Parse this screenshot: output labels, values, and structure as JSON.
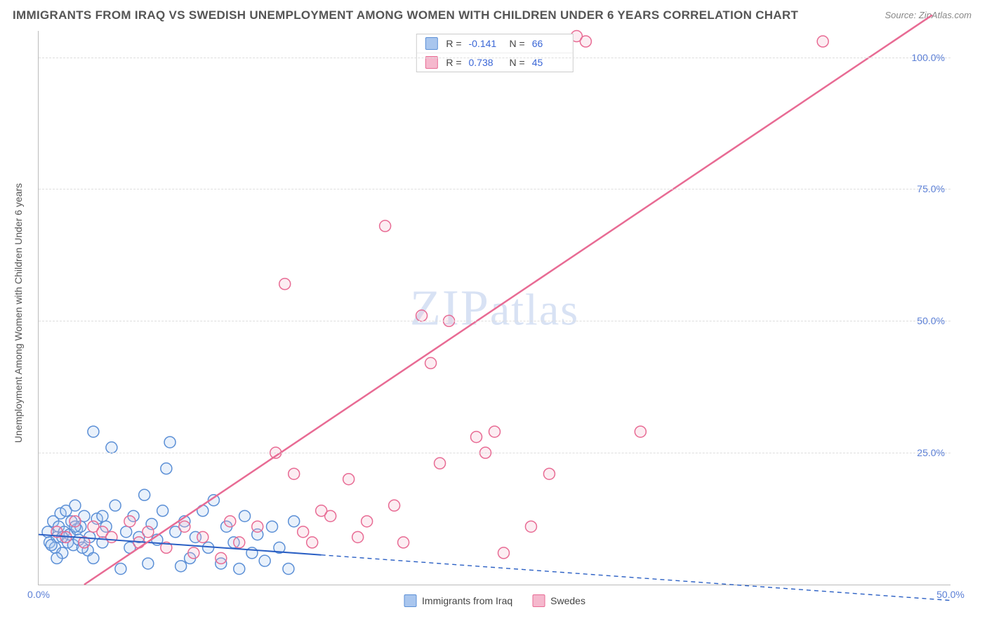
{
  "title": "IMMIGRANTS FROM IRAQ VS SWEDISH UNEMPLOYMENT AMONG WOMEN WITH CHILDREN UNDER 6 YEARS CORRELATION CHART",
  "source": "Source: ZipAtlas.com",
  "ylabel": "Unemployment Among Women with Children Under 6 years",
  "watermark": "ZIPatlas",
  "chart": {
    "type": "scatter",
    "background_color": "#ffffff",
    "grid_color": "#dddddd",
    "axis_color": "#bbbbbb",
    "xlim": [
      0,
      50
    ],
    "ylim": [
      0,
      105
    ],
    "x_ticks": [
      {
        "v": 0,
        "label": "0.0%"
      },
      {
        "v": 50,
        "label": "50.0%"
      }
    ],
    "y_ticks": [
      {
        "v": 25,
        "label": "25.0%"
      },
      {
        "v": 50,
        "label": "50.0%"
      },
      {
        "v": 75,
        "label": "75.0%"
      },
      {
        "v": 100,
        "label": "100.0%"
      }
    ],
    "marker_radius": 8,
    "marker_stroke_width": 1.5,
    "marker_fill_opacity": 0.25,
    "series": [
      {
        "id": "iraq",
        "label": "Immigrants from Iraq",
        "color": "#5b8fd6",
        "fill": "#a9c6ee",
        "stats": {
          "R": "-0.141",
          "N": "66"
        },
        "trend": {
          "x1": 0,
          "y1": 9.5,
          "x2": 50,
          "y2": -3,
          "solid_until_x": 15.5,
          "width": 2
        },
        "points": [
          [
            0.5,
            10
          ],
          [
            0.6,
            8
          ],
          [
            0.8,
            12
          ],
          [
            0.9,
            7
          ],
          [
            1.0,
            9
          ],
          [
            1.1,
            11
          ],
          [
            1.2,
            13.5
          ],
          [
            1.3,
            6
          ],
          [
            1.4,
            10
          ],
          [
            1.5,
            14
          ],
          [
            1.6,
            8
          ],
          [
            1.7,
            9.5
          ],
          [
            1.8,
            12
          ],
          [
            1.9,
            7.5
          ],
          [
            2.0,
            15
          ],
          [
            2.1,
            10.5
          ],
          [
            2.2,
            8.5
          ],
          [
            2.3,
            11
          ],
          [
            2.5,
            13
          ],
          [
            2.7,
            6.5
          ],
          [
            2.8,
            9
          ],
          [
            3.0,
            29
          ],
          [
            3.2,
            12.5
          ],
          [
            3.5,
            8
          ],
          [
            3.7,
            11
          ],
          [
            4.0,
            26
          ],
          [
            4.2,
            15
          ],
          [
            4.5,
            3
          ],
          [
            4.8,
            10
          ],
          [
            5.0,
            7
          ],
          [
            5.2,
            13
          ],
          [
            5.5,
            9
          ],
          [
            5.8,
            17
          ],
          [
            6.0,
            4
          ],
          [
            6.2,
            11.5
          ],
          [
            6.5,
            8.5
          ],
          [
            6.8,
            14
          ],
          [
            7.0,
            22
          ],
          [
            7.2,
            27
          ],
          [
            7.5,
            10
          ],
          [
            7.8,
            3.5
          ],
          [
            8.0,
            12
          ],
          [
            8.3,
            5
          ],
          [
            8.6,
            9
          ],
          [
            9.0,
            14
          ],
          [
            9.3,
            7
          ],
          [
            9.6,
            16
          ],
          [
            10.0,
            4
          ],
          [
            10.3,
            11
          ],
          [
            10.7,
            8
          ],
          [
            11.0,
            3
          ],
          [
            11.3,
            13
          ],
          [
            11.7,
            6
          ],
          [
            12.0,
            9.5
          ],
          [
            12.4,
            4.5
          ],
          [
            12.8,
            11
          ],
          [
            13.2,
            7
          ],
          [
            13.7,
            3
          ],
          [
            14.0,
            12
          ],
          [
            0.7,
            7.5
          ],
          [
            1.0,
            5
          ],
          [
            1.3,
            9
          ],
          [
            2.0,
            11
          ],
          [
            2.4,
            7
          ],
          [
            3.0,
            5
          ],
          [
            3.5,
            13
          ]
        ]
      },
      {
        "id": "swedes",
        "label": "Swedes",
        "color": "#e86b94",
        "fill": "#f5b8cd",
        "stats": {
          "R": "0.738",
          "N": "45"
        },
        "trend": {
          "x1": 2.5,
          "y1": 0,
          "x2": 49,
          "y2": 108,
          "solid_until_x": 49,
          "width": 2.5
        },
        "points": [
          [
            1.0,
            10
          ],
          [
            1.5,
            9
          ],
          [
            2.0,
            12
          ],
          [
            2.5,
            8
          ],
          [
            3.0,
            11
          ],
          [
            3.5,
            10
          ],
          [
            4.0,
            9
          ],
          [
            5.0,
            12
          ],
          [
            5.5,
            8
          ],
          [
            6.0,
            10
          ],
          [
            7.0,
            7
          ],
          [
            8.0,
            11
          ],
          [
            8.5,
            6
          ],
          [
            9.0,
            9
          ],
          [
            10.0,
            5
          ],
          [
            10.5,
            12
          ],
          [
            11.0,
            8
          ],
          [
            12.0,
            11
          ],
          [
            13.0,
            25
          ],
          [
            13.5,
            57
          ],
          [
            14.0,
            21
          ],
          [
            14.5,
            10
          ],
          [
            15.0,
            8
          ],
          [
            16.0,
            13
          ],
          [
            17.0,
            20
          ],
          [
            17.5,
            9
          ],
          [
            18.0,
            12
          ],
          [
            19.0,
            68
          ],
          [
            20.0,
            8
          ],
          [
            21.0,
            51
          ],
          [
            21.5,
            42
          ],
          [
            22.0,
            23
          ],
          [
            22.5,
            50
          ],
          [
            24.0,
            28
          ],
          [
            25.0,
            29
          ],
          [
            25.5,
            6
          ],
          [
            27.0,
            11
          ],
          [
            28.0,
            21
          ],
          [
            29.5,
            104
          ],
          [
            30.0,
            103
          ],
          [
            33.0,
            29
          ],
          [
            43.0,
            103
          ],
          [
            24.5,
            25
          ],
          [
            19.5,
            15
          ],
          [
            15.5,
            14
          ]
        ]
      }
    ]
  }
}
